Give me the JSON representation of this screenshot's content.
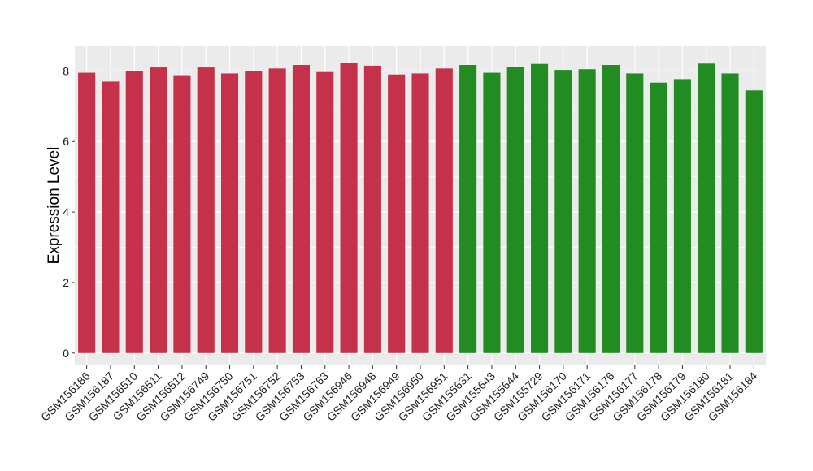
{
  "chart_data": {
    "type": "bar",
    "title": "",
    "xlabel": "",
    "ylabel": "Expression Level",
    "ylim": [
      -0.35,
      8.7
    ],
    "yticks": [
      0,
      2,
      4,
      6,
      8
    ],
    "grid": true,
    "categories": [
      "GSM156186",
      "GSM156187",
      "GSM156510",
      "GSM156511",
      "GSM156512",
      "GSM156749",
      "GSM156750",
      "GSM156751",
      "GSM156752",
      "GSM156753",
      "GSM156763",
      "GSM156946",
      "GSM156948",
      "GSM156949",
      "GSM156950",
      "GSM156951",
      "GSM155631",
      "GSM155643",
      "GSM155644",
      "GSM155729",
      "GSM156170",
      "GSM156171",
      "GSM156176",
      "GSM156177",
      "GSM156178",
      "GSM156179",
      "GSM156180",
      "GSM156181",
      "GSM156184"
    ],
    "values": [
      7.95,
      7.7,
      8.0,
      8.1,
      7.88,
      8.1,
      7.93,
      8.0,
      8.07,
      8.17,
      7.97,
      8.23,
      8.15,
      7.9,
      7.93,
      8.07,
      8.17,
      7.95,
      8.12,
      8.2,
      8.03,
      8.05,
      8.17,
      7.93,
      7.67,
      7.77,
      8.21,
      7.93,
      7.45
    ],
    "group_colors": [
      "#c5314a",
      "#c5314a",
      "#c5314a",
      "#c5314a",
      "#c5314a",
      "#c5314a",
      "#c5314a",
      "#c5314a",
      "#c5314a",
      "#c5314a",
      "#c5314a",
      "#c5314a",
      "#c5314a",
      "#c5314a",
      "#c5314a",
      "#c5314a",
      "#228b22",
      "#228b22",
      "#228b22",
      "#228b22",
      "#228b22",
      "#228b22",
      "#228b22",
      "#228b22",
      "#228b22",
      "#228b22",
      "#228b22",
      "#228b22",
      "#228b22"
    ],
    "panel_background": "#ebebeb",
    "gridline_color": "#ffffff"
  }
}
